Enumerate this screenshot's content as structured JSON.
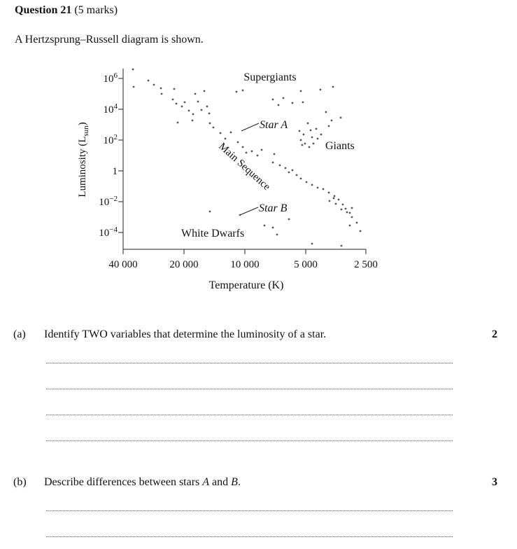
{
  "question": {
    "title_bold": "Question 21",
    "title_marks": "(5 marks)",
    "intro": "A Hertzsprung–Russell diagram is shown."
  },
  "diagram": {
    "y_axis_label": "Luminosity (L",
    "y_axis_label_sub": "sun",
    "y_axis_label_close": ")",
    "x_axis_label": "Temperature (K)",
    "y_ticks": [
      {
        "base": "10",
        "exp": "6",
        "log": 6
      },
      {
        "base": "10",
        "exp": "4",
        "log": 4
      },
      {
        "base": "10",
        "exp": "2",
        "log": 2
      },
      {
        "base": "1",
        "exp": "",
        "log": 0
      },
      {
        "base": "10",
        "exp": "−2",
        "log": -2
      },
      {
        "base": "10",
        "exp": "−4",
        "log": -4
      }
    ],
    "x_ticks": [
      "40 000",
      "20 000",
      "10 000",
      "5 000",
      "2 500"
    ],
    "labels": {
      "supergiants": "Supergiants",
      "giants": "Giants",
      "main_sequence": "Main Sequence",
      "white_dwarfs": "White Dwarfs",
      "star_a": "Star A",
      "star_b": "Star B"
    }
  },
  "parts": [
    {
      "label": "(a)",
      "text": "Identify TWO variables that determine the luminosity of a star.",
      "marks": "2"
    },
    {
      "label": "(b)",
      "text_before": "Describe differences between stars ",
      "star_a": "A",
      "text_mid": " and ",
      "star_b": "B",
      "text_after": ".",
      "marks": "3"
    }
  ]
}
